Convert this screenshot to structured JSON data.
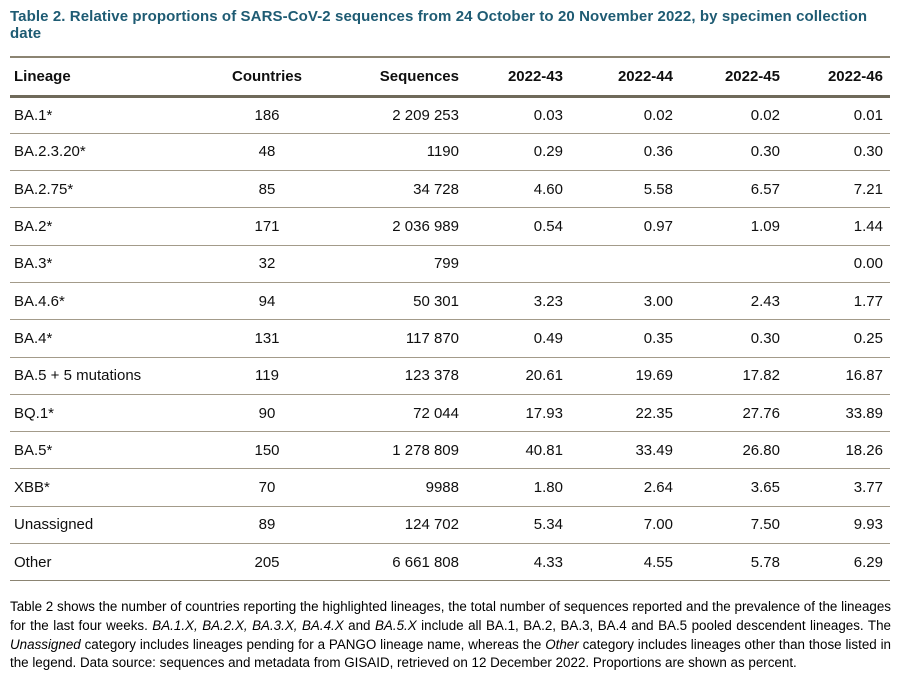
{
  "page": {
    "title": "Table 2. Relative proportions of SARS-CoV-2 sequences from 24 October to 20 November 2022, by specimen collection date"
  },
  "table": {
    "columns": [
      "Lineage",
      "Countries",
      "Sequences",
      "2022-43",
      "2022-44",
      "2022-45",
      "2022-46"
    ],
    "rows": [
      [
        "BA.1*",
        "186",
        "2 209 253",
        "0.03",
        "0.02",
        "0.02",
        "0.01"
      ],
      [
        "BA.2.3.20*",
        "48",
        "1190",
        "0.29",
        "0.36",
        "0.30",
        "0.30"
      ],
      [
        "BA.2.75*",
        "85",
        "34 728",
        "4.60",
        "5.58",
        "6.57",
        "7.21"
      ],
      [
        "BA.2*",
        "171",
        "2 036 989",
        "0.54",
        "0.97",
        "1.09",
        "1.44"
      ],
      [
        "BA.3*",
        "32",
        "799",
        "",
        "",
        "",
        "0.00"
      ],
      [
        "BA.4.6*",
        "94",
        "50 301",
        "3.23",
        "3.00",
        "2.43",
        "1.77"
      ],
      [
        "BA.4*",
        "131",
        "117 870",
        "0.49",
        "0.35",
        "0.30",
        "0.25"
      ],
      [
        "BA.5 + 5 mutations",
        "119",
        "123 378",
        "20.61",
        "19.69",
        "17.82",
        "16.87"
      ],
      [
        "BQ.1*",
        "90",
        "72 044",
        "17.93",
        "22.35",
        "27.76",
        "33.89"
      ],
      [
        "BA.5*",
        "150",
        "1 278 809",
        "40.81",
        "33.49",
        "26.80",
        "18.26"
      ],
      [
        "XBB*",
        "70",
        "9988",
        "1.80",
        "2.64",
        "3.65",
        "3.77"
      ],
      [
        "Unassigned",
        "89",
        "124 702",
        "5.34",
        "7.00",
        "7.50",
        "9.93"
      ],
      [
        "Other",
        "205",
        "6 661 808",
        "4.33",
        "4.55",
        "5.78",
        "6.29"
      ]
    ]
  },
  "footnote": {
    "segments": [
      {
        "text": "Table 2 shows the number of countries reporting the highlighted lineages, the total number of sequences reported and the prevalence of the lineages for the last four weeks. ",
        "italic": false
      },
      {
        "text": "BA.1.X, BA.2.X, BA.3.X, BA.4.X",
        "italic": true
      },
      {
        "text": " and ",
        "italic": false
      },
      {
        "text": "BA.5.X",
        "italic": true
      },
      {
        "text": " include all BA.1, BA.2, BA.3, BA.4 and BA.5 pooled descendent lineages. The ",
        "italic": false
      },
      {
        "text": "Unassigned",
        "italic": true
      },
      {
        "text": " category includes lineages pending for a PANGO lineage name, whereas the ",
        "italic": false
      },
      {
        "text": "Other",
        "italic": true
      },
      {
        "text": " category includes lineages other than those listed in the legend. Data source: sequences and metadata from GISAID, retrieved on 12 December 2022. Proportions are shown as percent.",
        "italic": false
      }
    ]
  },
  "colors": {
    "title_color": "#1e5b73",
    "border_thin": "#a39b8a",
    "border_medium": "#8b8472",
    "border_thick": "#6f6a5a",
    "text_color": "#0f0f0f"
  }
}
